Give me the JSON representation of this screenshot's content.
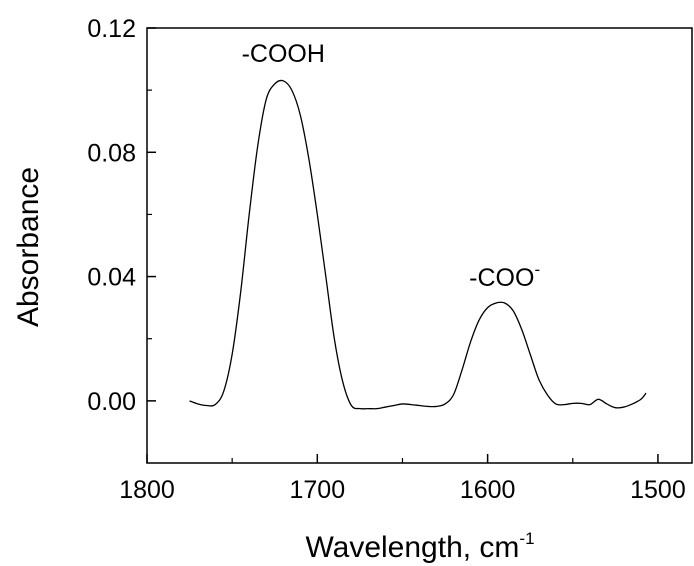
{
  "chart_data": {
    "type": "line",
    "xlabel": "Wavelength, cm",
    "xlabel_superscript": "-1",
    "ylabel": "Absorbance",
    "xlim": [
      1800,
      1480
    ],
    "ylim": [
      -0.02,
      0.12
    ],
    "x_reversed": true,
    "x_ticks": [
      1800,
      1700,
      1600,
      1500
    ],
    "x_tick_labels": [
      "1800",
      "1700",
      "1600",
      "1500"
    ],
    "y_ticks": [
      0.0,
      0.04,
      0.08,
      0.12
    ],
    "y_tick_labels": [
      "0.00",
      "0.04",
      "0.08",
      "0.12"
    ],
    "grid": false,
    "annotations": [
      {
        "text": "-COOH",
        "superscript": "",
        "x": 1720,
        "y": 0.109
      },
      {
        "text": "-COO",
        "superscript": "-",
        "x": 1590,
        "y": 0.037
      }
    ],
    "series": [
      {
        "color": "#000000",
        "x": [
          1775,
          1770,
          1765,
          1760,
          1755,
          1750,
          1745,
          1740,
          1735,
          1730,
          1725,
          1720,
          1715,
          1710,
          1705,
          1700,
          1695,
          1690,
          1685,
          1680,
          1675,
          1670,
          1665,
          1660,
          1655,
          1650,
          1645,
          1640,
          1635,
          1630,
          1625,
          1620,
          1615,
          1610,
          1605,
          1600,
          1595,
          1590,
          1585,
          1580,
          1575,
          1570,
          1565,
          1560,
          1555,
          1550,
          1545,
          1540,
          1535,
          1530,
          1525,
          1520,
          1515,
          1510,
          1507
        ],
        "y": [
          0.0,
          -0.001,
          -0.0015,
          -0.0012,
          0.003,
          0.015,
          0.035,
          0.06,
          0.082,
          0.097,
          0.102,
          0.103,
          0.1,
          0.092,
          0.078,
          0.06,
          0.04,
          0.02,
          0.006,
          -0.0015,
          -0.0025,
          -0.0025,
          -0.0025,
          -0.002,
          -0.0015,
          -0.001,
          -0.0012,
          -0.0015,
          -0.0018,
          -0.0018,
          -0.001,
          0.002,
          0.01,
          0.019,
          0.026,
          0.03,
          0.0315,
          0.0315,
          0.029,
          0.023,
          0.015,
          0.007,
          0.002,
          -0.001,
          -0.0012,
          -0.0008,
          -0.0008,
          -0.0012,
          0.0005,
          -0.001,
          -0.0022,
          -0.002,
          -0.001,
          0.0005,
          0.0025
        ]
      }
    ]
  }
}
